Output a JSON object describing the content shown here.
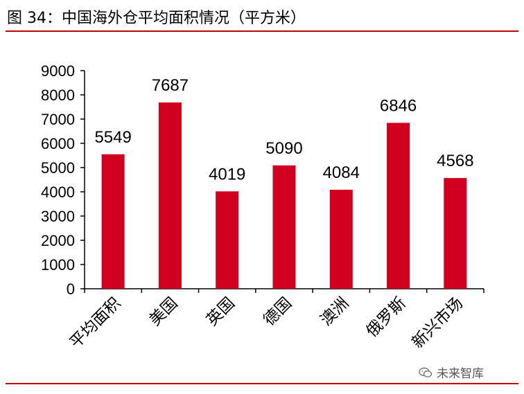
{
  "figure": {
    "title": "图 34：中国海外仓平均面积情况（平方米）",
    "watermark": "未来智库",
    "accent_color": "#c00000",
    "bar_color": "#d0001e"
  },
  "chart_data": {
    "type": "bar",
    "categories": [
      "平均面积",
      "美国",
      "英国",
      "德国",
      "澳洲",
      "俄罗斯",
      "新兴市场"
    ],
    "values": [
      5549,
      7687,
      4019,
      5090,
      4084,
      6846,
      4568
    ],
    "title": "",
    "xlabel": "",
    "ylabel": "",
    "ylim": [
      0,
      9000
    ],
    "yticks": [
      0,
      1000,
      2000,
      3000,
      4000,
      5000,
      6000,
      7000,
      8000,
      9000
    ],
    "data_labels": [
      "5549",
      "7687",
      "4019",
      "5090",
      "4084",
      "6846",
      "4568"
    ],
    "grid": false,
    "legend": "none"
  }
}
